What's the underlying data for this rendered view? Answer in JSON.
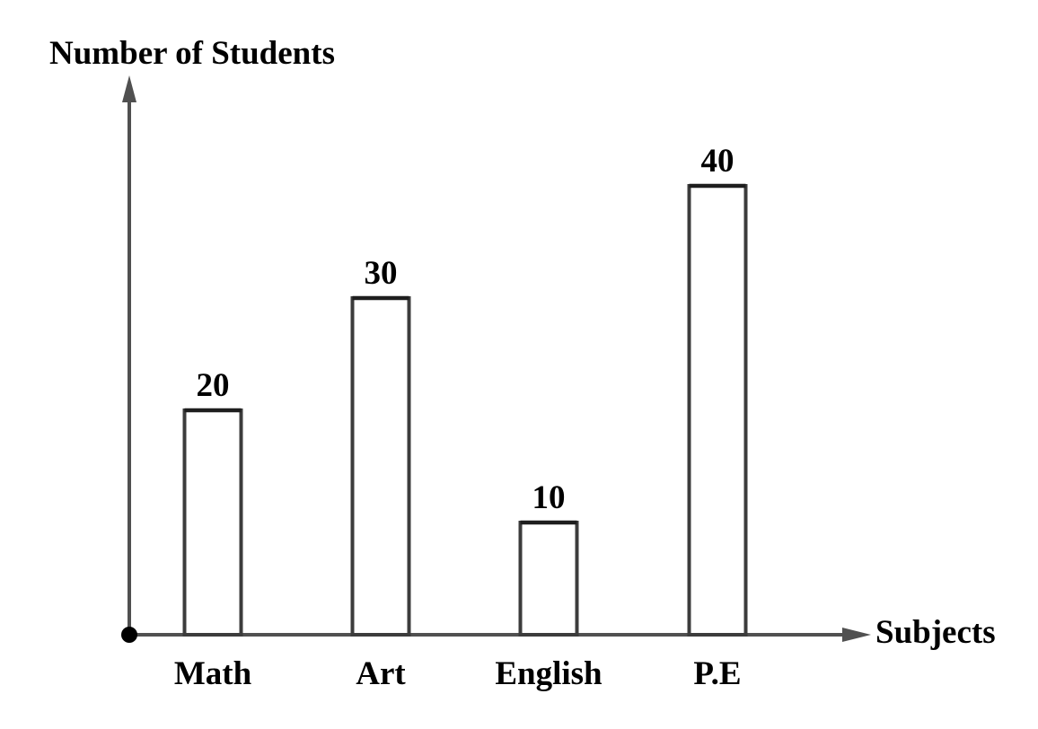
{
  "chart_data": {
    "type": "bar",
    "title": "",
    "ylabel": "Number of Students",
    "xlabel": "Subjects",
    "categories": [
      "Math",
      "Art",
      "English",
      "P.E"
    ],
    "values": [
      20,
      30,
      10,
      40
    ],
    "data_labels": [
      "20",
      "30",
      "10",
      "40"
    ],
    "ylim": [
      0,
      48
    ],
    "grid": false,
    "legend": "none",
    "colors": {
      "bar_fill": "#ffffff",
      "bar_stroke": "#3c3c3c",
      "axis": "#505050",
      "text": "#000000"
    }
  }
}
